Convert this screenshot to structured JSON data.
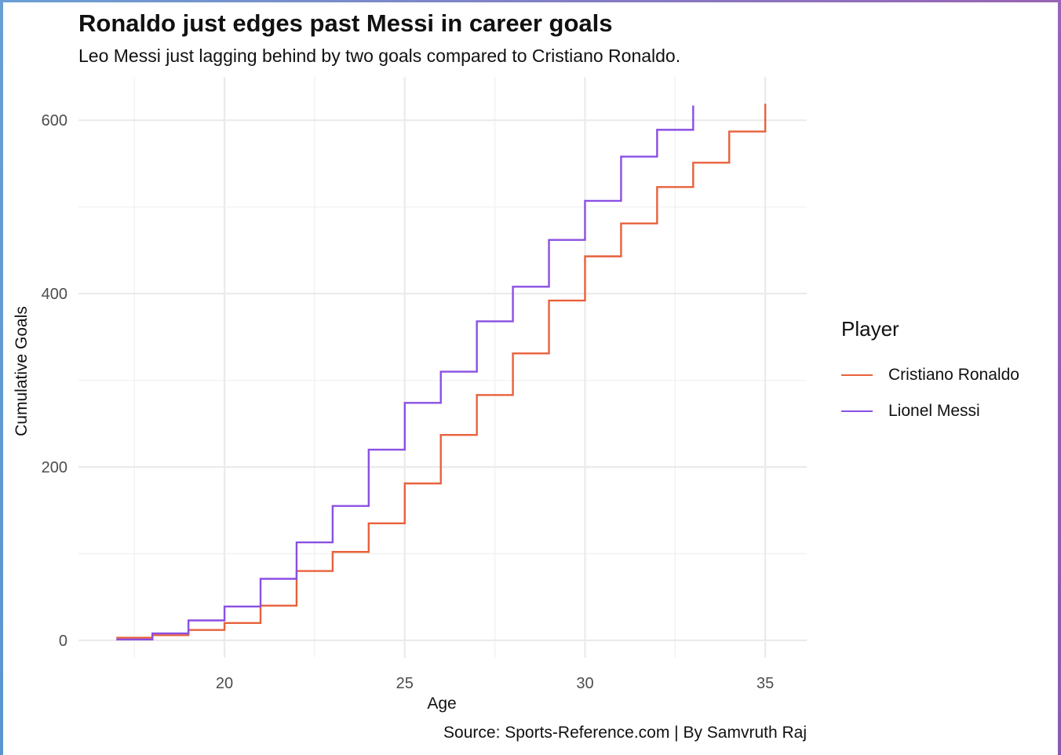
{
  "chart_data": {
    "type": "line",
    "title": "Ronaldo just edges past Messi in career goals",
    "subtitle": "Leo Messi just lagging behind by two goals compared to Cristiano Ronaldo.",
    "xlabel": "Age",
    "ylabel": "Cumulative Goals",
    "caption": "Source: Sports-Reference.com | By Samvruth Raj",
    "xlim": [
      15.95,
      36.15
    ],
    "ylim": [
      -20,
      650
    ],
    "x_ticks": [
      20,
      25,
      30,
      35
    ],
    "y_ticks": [
      0,
      200,
      400,
      600
    ],
    "grid": true,
    "step": true,
    "legend": {
      "title": "Player",
      "position": "right"
    },
    "series": [
      {
        "name": "Cristiano Ronaldo",
        "color": "#e8613c",
        "x": [
          17,
          18,
          19,
          20,
          21,
          22,
          23,
          24,
          25,
          26,
          27,
          28,
          29,
          30,
          31,
          32,
          33,
          34,
          35
        ],
        "values": [
          3,
          6,
          12,
          20,
          40,
          80,
          102,
          135,
          181,
          237,
          283,
          331,
          392,
          443,
          481,
          523,
          551,
          587,
          619
        ]
      },
      {
        "name": "Lionel Messi",
        "color": "#8b4fe3",
        "x": [
          17,
          18,
          19,
          20,
          21,
          22,
          23,
          24,
          25,
          26,
          27,
          28,
          29,
          30,
          31,
          32,
          33
        ],
        "values": [
          1,
          8,
          23,
          39,
          71,
          113,
          155,
          220,
          274,
          310,
          368,
          408,
          462,
          507,
          558,
          589,
          617
        ]
      }
    ]
  }
}
